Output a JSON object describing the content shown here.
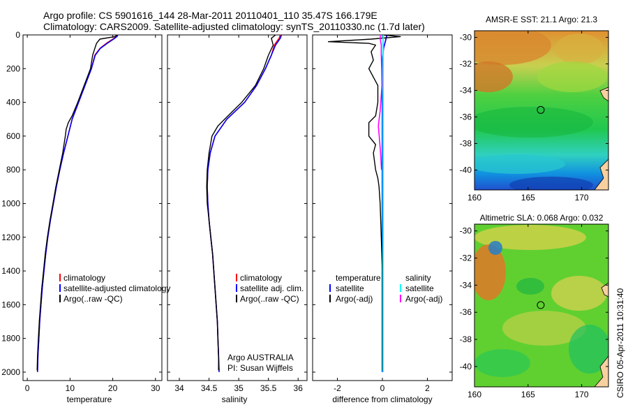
{
  "header": {
    "line1": "Argo profile: CS 5901616_144 28-Mar-2011 20110401_110 35.47S 166.179E",
    "line2": "Climatology: CARS2009. Satellite-adjusted climatology: synTS_20110330.nc (1.7d later)"
  },
  "footer": {
    "credit_line1": "Argo AUSTRALIA",
    "credit_line2": "PI: Susan Wijffels",
    "stamp": "CSIRO 05-Apr-2011 10:31:40"
  },
  "colors": {
    "climatology": "#ff0000",
    "satellite": "#0000ff",
    "argo": "#000000",
    "sal_satellite": "#00ffff",
    "sal_argo": "#ff00ff"
  },
  "chart_data": [
    {
      "id": "temperature",
      "type": "line",
      "xlabel": "temperature",
      "xlim": [
        -1,
        31.5
      ],
      "ylim": [
        2050,
        0
      ],
      "xticks": [
        0,
        10,
        20,
        30
      ],
      "yticks": [
        0,
        200,
        400,
        600,
        800,
        1000,
        1200,
        1400,
        1600,
        1800,
        2000
      ],
      "legend": [
        "climatology",
        "satellite-adjusted climatology",
        "Argo(..raw -QC)"
      ],
      "series": [
        {
          "name": "climatology",
          "color": "#ff0000",
          "width": 1.6,
          "points": [
            [
              21,
              0
            ],
            [
              20.8,
              10
            ],
            [
              20,
              25
            ],
            [
              18.5,
              50
            ],
            [
              17,
              80
            ],
            [
              15.8,
              120
            ],
            [
              15,
              200
            ],
            [
              13.5,
              300
            ],
            [
              12,
              400
            ],
            [
              10.5,
              500
            ],
            [
              9.5,
              600
            ],
            [
              8.5,
              700
            ],
            [
              7.6,
              800
            ],
            [
              6.8,
              900
            ],
            [
              6.1,
              1000
            ],
            [
              5.4,
              1100
            ],
            [
              4.8,
              1200
            ],
            [
              4.3,
              1300
            ],
            [
              3.9,
              1400
            ],
            [
              3.5,
              1500
            ],
            [
              3.2,
              1600
            ],
            [
              2.9,
              1700
            ],
            [
              2.7,
              1800
            ],
            [
              2.5,
              1900
            ],
            [
              2.4,
              1990
            ]
          ]
        },
        {
          "name": "satellite-adjusted climatology",
          "color": "#0000ff",
          "width": 1.6,
          "points": [
            [
              21.2,
              0
            ],
            [
              21,
              10
            ],
            [
              20.2,
              25
            ],
            [
              18.7,
              50
            ],
            [
              17.1,
              80
            ],
            [
              15.9,
              120
            ],
            [
              15,
              200
            ],
            [
              13.5,
              300
            ],
            [
              12,
              400
            ],
            [
              10.5,
              500
            ],
            [
              9.5,
              600
            ],
            [
              8.5,
              700
            ],
            [
              7.6,
              800
            ],
            [
              6.8,
              900
            ],
            [
              6.1,
              1000
            ],
            [
              5.4,
              1100
            ],
            [
              4.8,
              1200
            ],
            [
              4.3,
              1300
            ],
            [
              3.9,
              1400
            ],
            [
              3.5,
              1500
            ],
            [
              3.2,
              1600
            ],
            [
              2.9,
              1700
            ],
            [
              2.7,
              1800
            ],
            [
              2.5,
              1900
            ],
            [
              2.4,
              2000
            ]
          ]
        },
        {
          "name": "Argo(..raw -QC)",
          "color": "#000000",
          "width": 1.4,
          "points": [
            [
              21,
              0
            ],
            [
              20.5,
              10
            ],
            [
              17,
              25
            ],
            [
              16.2,
              50
            ],
            [
              15.8,
              80
            ],
            [
              15.3,
              120
            ],
            [
              14.8,
              200
            ],
            [
              13.3,
              300
            ],
            [
              11.8,
              400
            ],
            [
              10.5,
              480
            ],
            [
              9.6,
              520
            ],
            [
              9.1,
              560
            ],
            [
              8.9,
              600
            ],
            [
              8.3,
              700
            ],
            [
              7.5,
              800
            ],
            [
              6.7,
              900
            ],
            [
              6,
              1000
            ],
            [
              5.3,
              1100
            ],
            [
              4.7,
              1200
            ],
            [
              4.2,
              1300
            ],
            [
              3.8,
              1400
            ],
            [
              3.4,
              1500
            ],
            [
              3.1,
              1600
            ],
            [
              2.8,
              1700
            ],
            [
              2.6,
              1800
            ],
            [
              2.4,
              1900
            ],
            [
              2.3,
              1990
            ]
          ]
        }
      ]
    },
    {
      "id": "salinity",
      "type": "line",
      "xlabel": "salinity",
      "xlim": [
        33.8,
        36.15
      ],
      "ylim": [
        2050,
        0
      ],
      "xticks": [
        34,
        34.5,
        35,
        35.5,
        36
      ],
      "xtick_labels": [
        "34",
        "34.5",
        "35",
        "35.5",
        "36"
      ],
      "yticks": [
        0,
        200,
        400,
        600,
        800,
        1000,
        1200,
        1400,
        1600,
        1800,
        2000
      ],
      "legend": [
        "climatology",
        "satellite adj. clim.",
        "Argo(..raw -QC)"
      ],
      "series": [
        {
          "name": "climatology",
          "color": "#ff0000",
          "width": 1.6,
          "points": [
            [
              35.7,
              0
            ],
            [
              35.68,
              20
            ],
            [
              35.6,
              60
            ],
            [
              35.55,
              120
            ],
            [
              35.45,
              200
            ],
            [
              35.3,
              300
            ],
            [
              35.1,
              400
            ],
            [
              34.8,
              500
            ],
            [
              34.6,
              600
            ],
            [
              34.52,
              700
            ],
            [
              34.48,
              800
            ],
            [
              34.47,
              900
            ],
            [
              34.48,
              1000
            ],
            [
              34.5,
              1100
            ],
            [
              34.53,
              1200
            ],
            [
              34.56,
              1300
            ],
            [
              34.58,
              1400
            ],
            [
              34.6,
              1500
            ],
            [
              34.62,
              1600
            ],
            [
              34.64,
              1700
            ],
            [
              34.65,
              1800
            ],
            [
              34.66,
              1900
            ],
            [
              34.67,
              1990
            ]
          ]
        },
        {
          "name": "satellite adj. clim.",
          "color": "#0000ff",
          "width": 1.6,
          "points": [
            [
              35.72,
              0
            ],
            [
              35.7,
              20
            ],
            [
              35.62,
              60
            ],
            [
              35.55,
              120
            ],
            [
              35.45,
              200
            ],
            [
              35.3,
              300
            ],
            [
              35.1,
              400
            ],
            [
              34.8,
              500
            ],
            [
              34.6,
              600
            ],
            [
              34.52,
              700
            ],
            [
              34.48,
              800
            ],
            [
              34.47,
              900
            ],
            [
              34.48,
              1000
            ],
            [
              34.5,
              1100
            ],
            [
              34.53,
              1200
            ],
            [
              34.56,
              1300
            ],
            [
              34.58,
              1400
            ],
            [
              34.6,
              1500
            ],
            [
              34.62,
              1600
            ],
            [
              34.64,
              1700
            ],
            [
              34.65,
              1800
            ],
            [
              34.66,
              1900
            ],
            [
              34.67,
              2000
            ]
          ]
        },
        {
          "name": "Argo(..raw -QC)",
          "color": "#000000",
          "width": 1.4,
          "points": [
            [
              35.62,
              0
            ],
            [
              35.55,
              20
            ],
            [
              35.58,
              60
            ],
            [
              35.5,
              120
            ],
            [
              35.42,
              200
            ],
            [
              35.28,
              300
            ],
            [
              35.05,
              400
            ],
            [
              34.82,
              480
            ],
            [
              34.65,
              540
            ],
            [
              34.55,
              600
            ],
            [
              34.5,
              700
            ],
            [
              34.47,
              800
            ],
            [
              34.46,
              900
            ],
            [
              34.47,
              1000
            ],
            [
              34.5,
              1100
            ],
            [
              34.53,
              1200
            ],
            [
              34.56,
              1300
            ],
            [
              34.58,
              1400
            ],
            [
              34.6,
              1500
            ],
            [
              34.62,
              1600
            ],
            [
              34.64,
              1700
            ],
            [
              34.65,
              1800
            ],
            [
              34.66,
              1900
            ],
            [
              34.66,
              1990
            ]
          ]
        }
      ]
    },
    {
      "id": "difference",
      "type": "line",
      "xlabel": "difference from climatology",
      "xlim": [
        -3.1,
        3.1
      ],
      "ylim": [
        2050,
        0
      ],
      "xticks": [
        -2,
        0,
        2
      ],
      "yticks": [
        0,
        200,
        400,
        600,
        800,
        1000,
        1200,
        1400,
        1600,
        1800,
        2000
      ],
      "legend_titles": [
        "temperature",
        "salinity"
      ],
      "legend": [
        "satellite",
        "Argo(-adj)",
        "satellite",
        "Argo(-adj)"
      ],
      "series": [
        {
          "name": "satellite",
          "color": "#0000ff",
          "width": 1.8,
          "points": [
            [
              0.2,
              0
            ],
            [
              0.15,
              30
            ],
            [
              0.05,
              80
            ],
            [
              0,
              150
            ],
            [
              0,
              2000
            ]
          ]
        },
        {
          "name": "Argo(-adj)",
          "color": "#000000",
          "width": 1.4,
          "points": [
            [
              0,
              0
            ],
            [
              0.8,
              10
            ],
            [
              -0.5,
              25
            ],
            [
              -2.4,
              40
            ],
            [
              -0.6,
              50
            ],
            [
              -0.3,
              60
            ],
            [
              -0.5,
              100
            ],
            [
              -0.4,
              150
            ],
            [
              -0.6,
              200
            ],
            [
              -0.2,
              300
            ],
            [
              -0.2,
              400
            ],
            [
              -0.3,
              480
            ],
            [
              -0.6,
              520
            ],
            [
              -0.6,
              600
            ],
            [
              -0.3,
              650
            ],
            [
              -0.4,
              700
            ],
            [
              -0.3,
              800
            ],
            [
              -0.2,
              850
            ],
            [
              -0.15,
              900
            ],
            [
              -0.1,
              1000
            ],
            [
              -0.05,
              1200
            ],
            [
              0,
              1400
            ],
            [
              0,
              1990
            ]
          ]
        },
        {
          "name": "salinity satellite",
          "color": "#00ffff",
          "width": 1.8,
          "points": [
            [
              0.03,
              0
            ],
            [
              0.03,
              2000
            ]
          ]
        },
        {
          "name": "salinity Argo(-adj)",
          "color": "#ff00ff",
          "width": 1.6,
          "points": [
            [
              -0.08,
              0
            ],
            [
              -0.1,
              20
            ],
            [
              -0.05,
              60
            ],
            [
              -0.05,
              120
            ],
            [
              -0.03,
              200
            ],
            [
              -0.02,
              300
            ],
            [
              -0.1,
              450
            ],
            [
              -0.18,
              540
            ],
            [
              -0.14,
              600
            ],
            [
              -0.08,
              700
            ],
            [
              -0.04,
              800
            ]
          ]
        }
      ]
    },
    {
      "id": "sst-map",
      "type": "heatmap",
      "title": "AMSR-E SST: 21.1  Argo: 21.3",
      "xlim": [
        160,
        172.5
      ],
      "ylim": [
        -41.5,
        -29.5
      ],
      "xticks": [
        160,
        165,
        170
      ],
      "yticks": [
        -30,
        -32,
        -34,
        -36,
        -38,
        -40
      ],
      "marker": {
        "lon": 166.179,
        "lat": -35.47
      }
    },
    {
      "id": "sla-map",
      "type": "heatmap",
      "title": "Altimetric SLA: 0.068  Argo: 0.032",
      "xlim": [
        160,
        172.5
      ],
      "ylim": [
        -41.5,
        -29.5
      ],
      "xticks": [
        160,
        165,
        170
      ],
      "yticks": [
        -30,
        -32,
        -34,
        -36,
        -38,
        -40
      ],
      "marker": {
        "lon": 166.179,
        "lat": -35.47
      }
    }
  ]
}
